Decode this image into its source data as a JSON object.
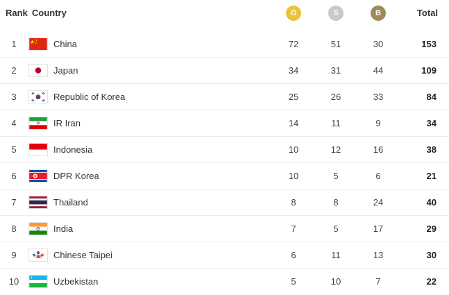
{
  "header": {
    "rank": "Rank",
    "country": "Country",
    "gold": "G",
    "silver": "S",
    "bronze": "B",
    "total": "Total"
  },
  "colors": {
    "gold": "#e9c43a",
    "silver": "#c8c8d0",
    "bronze": "#a08a5c"
  },
  "rows": [
    {
      "rank": "1",
      "country": "China",
      "flag": "flag-china-icon",
      "gold": "72",
      "silver": "51",
      "bronze": "30",
      "total": "153"
    },
    {
      "rank": "2",
      "country": "Japan",
      "flag": "flag-japan-icon",
      "gold": "34",
      "silver": "31",
      "bronze": "44",
      "total": "109"
    },
    {
      "rank": "3",
      "country": "Republic of Korea",
      "flag": "flag-korea-icon",
      "gold": "25",
      "silver": "26",
      "bronze": "33",
      "total": "84"
    },
    {
      "rank": "4",
      "country": "IR Iran",
      "flag": "flag-iran-icon",
      "gold": "14",
      "silver": "11",
      "bronze": "9",
      "total": "34"
    },
    {
      "rank": "5",
      "country": "Indonesia",
      "flag": "flag-indonesia-icon",
      "gold": "10",
      "silver": "12",
      "bronze": "16",
      "total": "38"
    },
    {
      "rank": "6",
      "country": "DPR Korea",
      "flag": "flag-dpr-korea-icon",
      "gold": "10",
      "silver": "5",
      "bronze": "6",
      "total": "21"
    },
    {
      "rank": "7",
      "country": "Thailand",
      "flag": "flag-thailand-icon",
      "gold": "8",
      "silver": "8",
      "bronze": "24",
      "total": "40"
    },
    {
      "rank": "8",
      "country": "India",
      "flag": "flag-india-icon",
      "gold": "7",
      "silver": "5",
      "bronze": "17",
      "total": "29"
    },
    {
      "rank": "9",
      "country": "Chinese Taipei",
      "flag": "flag-chinese-taipei-icon",
      "gold": "6",
      "silver": "11",
      "bronze": "13",
      "total": "30"
    },
    {
      "rank": "10",
      "country": "Uzbekistan",
      "flag": "flag-uzbekistan-icon",
      "gold": "5",
      "silver": "10",
      "bronze": "7",
      "total": "22"
    }
  ]
}
